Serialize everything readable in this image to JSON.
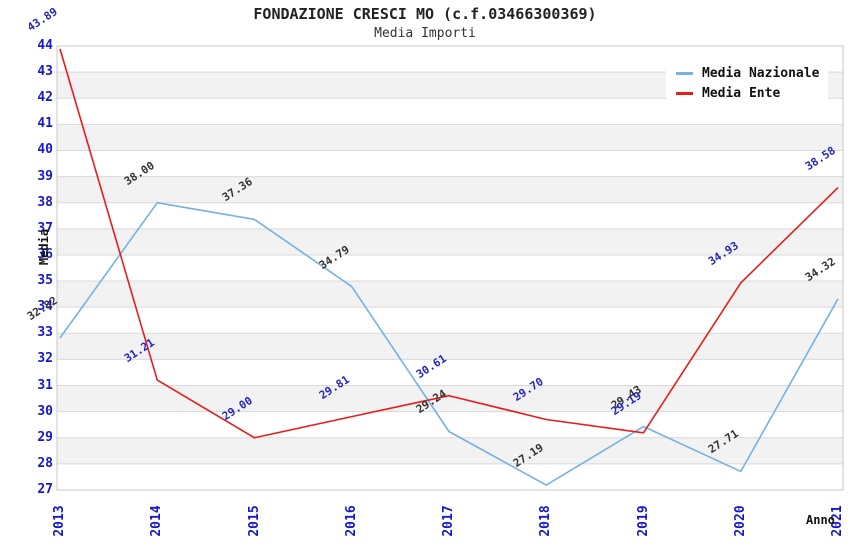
{
  "header": {
    "title": "FONDAZIONE CRESCI  MO (c.f.03466300369)",
    "subtitle": "Media Importi"
  },
  "legend": {
    "items": [
      {
        "label": "Media Nazionale"
      },
      {
        "label": "Media Ente"
      }
    ]
  },
  "colors": {
    "band_fill": "#f2f2f2",
    "grid_line": "#d9d9d9",
    "plot_border": "#c8c8c8",
    "tick_label": "#1717cc",
    "national_line": "#74b2e4",
    "ente_line": "#e81c1c",
    "national_point_label": "#333333",
    "ente_point_label": "#2626bb"
  },
  "chart_data": {
    "type": "line",
    "title": "FONDAZIONE CRESCI  MO (c.f.03466300369)",
    "subtitle": "Media Importi",
    "xlabel": "Anno",
    "ylabel": "Media",
    "categories": [
      "2013",
      "2014",
      "2015",
      "2016",
      "2017",
      "2018",
      "2019",
      "2020",
      "2021"
    ],
    "series": [
      {
        "name": "Media Nazionale",
        "color": "#74b2e4",
        "label_color": "#333333",
        "values": [
          32.82,
          38.0,
          37.36,
          34.79,
          29.24,
          27.19,
          29.43,
          27.71,
          34.32
        ]
      },
      {
        "name": "Media Ente",
        "color": "#e81c1c",
        "label_color": "#2626bb",
        "values": [
          43.89,
          31.21,
          29.0,
          29.81,
          30.61,
          29.7,
          29.19,
          34.93,
          38.58
        ]
      }
    ],
    "ylim": [
      27,
      44
    ],
    "ytick_step": 1,
    "grid": true,
    "banded_background": true,
    "legend_position": "top-right",
    "point_labels": "values shown at each point, rotated"
  }
}
